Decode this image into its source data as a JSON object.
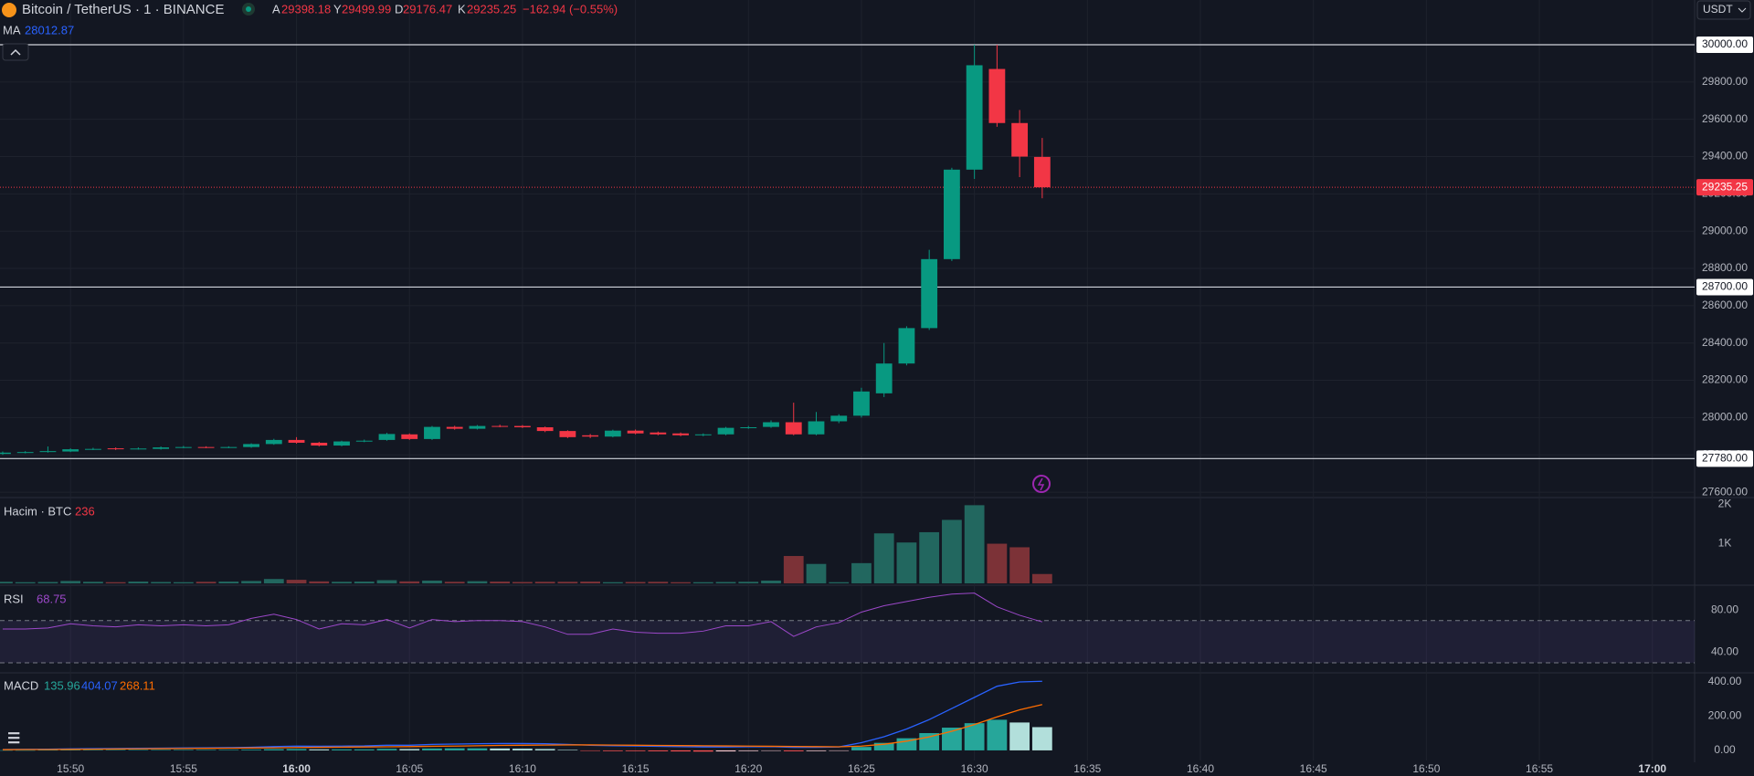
{
  "header": {
    "currency": "USDT"
  },
  "chart_data": [
    {
      "type": "candlestick",
      "title": "Bitcoin / TetherUS · 1 · BINANCE",
      "ohlc_legend": [
        {
          "key": "A",
          "value": "29398.18"
        },
        {
          "key": "Y",
          "value": "29499.99"
        },
        {
          "key": "D",
          "value": "29176.47"
        },
        {
          "key": "K",
          "value": "29235.25"
        }
      ],
      "change": "−162.94 (−0.55%)",
      "indicator": {
        "name": "MA",
        "value": "28012.87"
      },
      "up_color": "#089981",
      "down_color": "#f23645",
      "x": [
        947,
        948,
        949,
        950,
        951,
        952,
        953,
        954,
        955,
        956,
        957,
        958,
        959,
        960,
        961,
        962,
        963,
        964,
        965,
        966,
        967,
        968,
        969,
        970,
        971,
        972,
        973,
        974,
        975,
        976,
        977,
        978,
        979,
        980,
        981,
        982,
        983,
        984,
        985,
        986,
        987,
        988,
        989,
        990,
        991,
        992,
        993
      ],
      "open": [
        27805,
        27812,
        27815,
        27818,
        27830,
        27835,
        27832,
        27832,
        27840,
        27842,
        27840,
        27842,
        27858,
        27880,
        27865,
        27850,
        27872,
        27880,
        27910,
        27885,
        27950,
        27940,
        27955,
        27955,
        27948,
        27928,
        27905,
        27898,
        27930,
        27920,
        27915,
        27905,
        27910,
        27945,
        27950,
        27975,
        27910,
        27980,
        28010,
        28130,
        28290,
        28480,
        28850,
        29330,
        29870,
        29580,
        29398.18
      ],
      "high": [
        27818,
        27820,
        27845,
        27835,
        27838,
        27840,
        27840,
        27845,
        27848,
        27846,
        27846,
        27862,
        27886,
        27895,
        27870,
        27876,
        27882,
        27918,
        27915,
        27955,
        27956,
        27960,
        27962,
        27960,
        27952,
        27932,
        27912,
        27935,
        27936,
        27925,
        27920,
        27915,
        27950,
        27955,
        27985,
        28080,
        28030,
        28018,
        28160,
        28400,
        28490,
        28900,
        29340,
        30000,
        30000,
        29650,
        29499.99
      ],
      "low": [
        27800,
        27808,
        27812,
        27815,
        27826,
        27826,
        27828,
        27828,
        27836,
        27836,
        27836,
        27838,
        27854,
        27860,
        27845,
        27846,
        27868,
        27876,
        27880,
        27880,
        27935,
        27936,
        27948,
        27944,
        27922,
        27890,
        27890,
        27894,
        27910,
        27905,
        27900,
        27900,
        27905,
        27940,
        27945,
        27905,
        27905,
        27970,
        28000,
        28110,
        28280,
        28470,
        28840,
        29280,
        29560,
        29290,
        29176.47
      ],
      "close": [
        27812,
        27815,
        27820,
        27830,
        27832,
        27830,
        27834,
        27840,
        27842,
        27840,
        27842,
        27858,
        27880,
        27865,
        27850,
        27872,
        27876,
        27912,
        27885,
        27950,
        27940,
        27955,
        27952,
        27948,
        27928,
        27895,
        27898,
        27930,
        27915,
        27910,
        27905,
        27910,
        27945,
        27948,
        27975,
        27910,
        27980,
        28010,
        28140,
        28290,
        28480,
        28850,
        29330,
        29890,
        29580,
        29400,
        29235.25
      ],
      "xlim": [
        946.88,
        1021.87
      ],
      "xticks": [
        {
          "value": 950,
          "label": "15:50"
        },
        {
          "value": 955,
          "label": "15:55"
        },
        {
          "value": 960,
          "label": "16:00"
        },
        {
          "value": 965,
          "label": "16:05"
        },
        {
          "value": 970,
          "label": "16:10"
        },
        {
          "value": 975,
          "label": "16:15"
        },
        {
          "value": 980,
          "label": "16:20"
        },
        {
          "value": 985,
          "label": "16:25"
        },
        {
          "value": 990,
          "label": "16:30"
        },
        {
          "value": 995,
          "label": "16:35"
        },
        {
          "value": 1000,
          "label": "16:40"
        },
        {
          "value": 1005,
          "label": "16:45"
        },
        {
          "value": 1010,
          "label": "16:50"
        },
        {
          "value": 1015,
          "label": "16:55"
        },
        {
          "value": 1020,
          "label": "17:00"
        }
      ],
      "ylim": [
        27571,
        30240
      ],
      "yticks": [
        {
          "value": 27600,
          "label": "27600.00"
        },
        {
          "value": 27800,
          "label": "27800.00"
        },
        {
          "value": 28000,
          "label": "28000.00"
        },
        {
          "value": 28200,
          "label": "28200.00"
        },
        {
          "value": 28400,
          "label": "28400.00"
        },
        {
          "value": 28600,
          "label": "28600.00"
        },
        {
          "value": 28800,
          "label": "28800.00"
        },
        {
          "value": 29000,
          "label": "29000.00"
        },
        {
          "value": 29200,
          "label": "29200.00"
        },
        {
          "value": 29400,
          "label": "29400.00"
        },
        {
          "value": 29600,
          "label": "29600.00"
        },
        {
          "value": 29800,
          "label": "29800.00"
        }
      ],
      "hlines": [
        {
          "value": 30000,
          "label": "30000.00"
        },
        {
          "value": 28700,
          "label": "28700.00"
        },
        {
          "value": 27780,
          "label": "27780.00"
        }
      ],
      "last_price": {
        "value": 29235.25,
        "label": "29235.25"
      },
      "grid": true
    },
    {
      "type": "volume",
      "title": "Hacim · BTC",
      "last_label": "236",
      "up_color": "#22675f",
      "down_color": "#7c3237",
      "values": [
        40,
        30,
        35,
        60,
        40,
        30,
        45,
        35,
        30,
        40,
        45,
        60,
        110,
        90,
        50,
        40,
        45,
        80,
        50,
        70,
        40,
        55,
        45,
        35,
        40,
        40,
        45,
        30,
        35,
        40,
        30,
        30,
        35,
        40,
        70,
        690,
        490,
        30,
        510,
        1260,
        1030,
        1290,
        1600,
        1970,
        1000,
        910,
        236
      ],
      "ylim": [
        -23,
        2163
      ],
      "yticks": [
        {
          "value": 1000,
          "label": "1K"
        },
        {
          "value": 2000,
          "label": "2K"
        }
      ]
    },
    {
      "type": "rsi",
      "title": "RSI",
      "last_label": "68.75",
      "color": "#9c48c9",
      "band": [
        30,
        70
      ],
      "values": [
        62,
        62,
        63,
        67,
        65,
        64,
        66,
        65,
        66,
        65,
        66,
        72,
        76,
        71,
        62,
        67,
        66,
        71,
        63,
        71,
        69,
        70,
        70,
        69,
        64,
        57,
        57,
        62,
        59,
        58,
        58,
        60,
        65,
        65,
        69,
        55,
        64,
        68,
        78,
        84,
        88,
        92,
        95,
        96,
        83,
        75,
        68.75
      ],
      "ylim": [
        21.4,
        102.6
      ],
      "yticks": [
        {
          "value": 40,
          "label": "40.00"
        },
        {
          "value": 80,
          "label": "80.00"
        }
      ]
    },
    {
      "type": "macd",
      "title": "MACD",
      "series": [
        {
          "name": "histogram",
          "last_label": "135.96",
          "color": "#26a69a",
          "fade_color": "#b2dfdb",
          "values": [
            1,
            1,
            2,
            3,
            3,
            3,
            3,
            3,
            3,
            3,
            3,
            4,
            7,
            8,
            6,
            6,
            6,
            9,
            8,
            11,
            12,
            12,
            11,
            10,
            8,
            3,
            -2,
            -4,
            -4,
            -5,
            -6,
            -7,
            -6,
            -4,
            -2,
            -5,
            -4,
            -1,
            20,
            44,
            71,
            101,
            133,
            159,
            179,
            163,
            135.96
          ]
        },
        {
          "name": "macd",
          "last_label": "404.07",
          "color": "#2962ff",
          "values": [
            5,
            6,
            7,
            9,
            10,
            11,
            12,
            13,
            14,
            15,
            16,
            18,
            22,
            25,
            24,
            25,
            26,
            30,
            30,
            35,
            37,
            39,
            40,
            40,
            39,
            35,
            30,
            27,
            26,
            24,
            22,
            20,
            20,
            21,
            22,
            18,
            18,
            20,
            45,
            80,
            125,
            180,
            245,
            310,
            375,
            400,
            404.07
          ]
        },
        {
          "name": "signal",
          "last_label": "268.11",
          "color": "#ff6d00",
          "values": [
            4,
            5,
            5,
            6,
            7,
            8,
            9,
            10,
            11,
            12,
            13,
            14,
            15,
            17,
            18,
            19,
            20,
            21,
            22,
            24,
            25,
            27,
            29,
            30,
            31,
            32,
            32,
            31,
            30,
            29,
            28,
            27,
            26,
            25,
            24,
            23,
            22,
            21,
            25,
            36,
            54,
            79,
            112,
            151,
            196,
            237,
            268.11
          ]
        }
      ],
      "ylim": [
        -59,
        448
      ],
      "yticks": [
        {
          "value": 0,
          "label": "0.00"
        },
        {
          "value": 200,
          "label": "200.00"
        },
        {
          "value": 400,
          "label": "400.00"
        }
      ]
    }
  ]
}
